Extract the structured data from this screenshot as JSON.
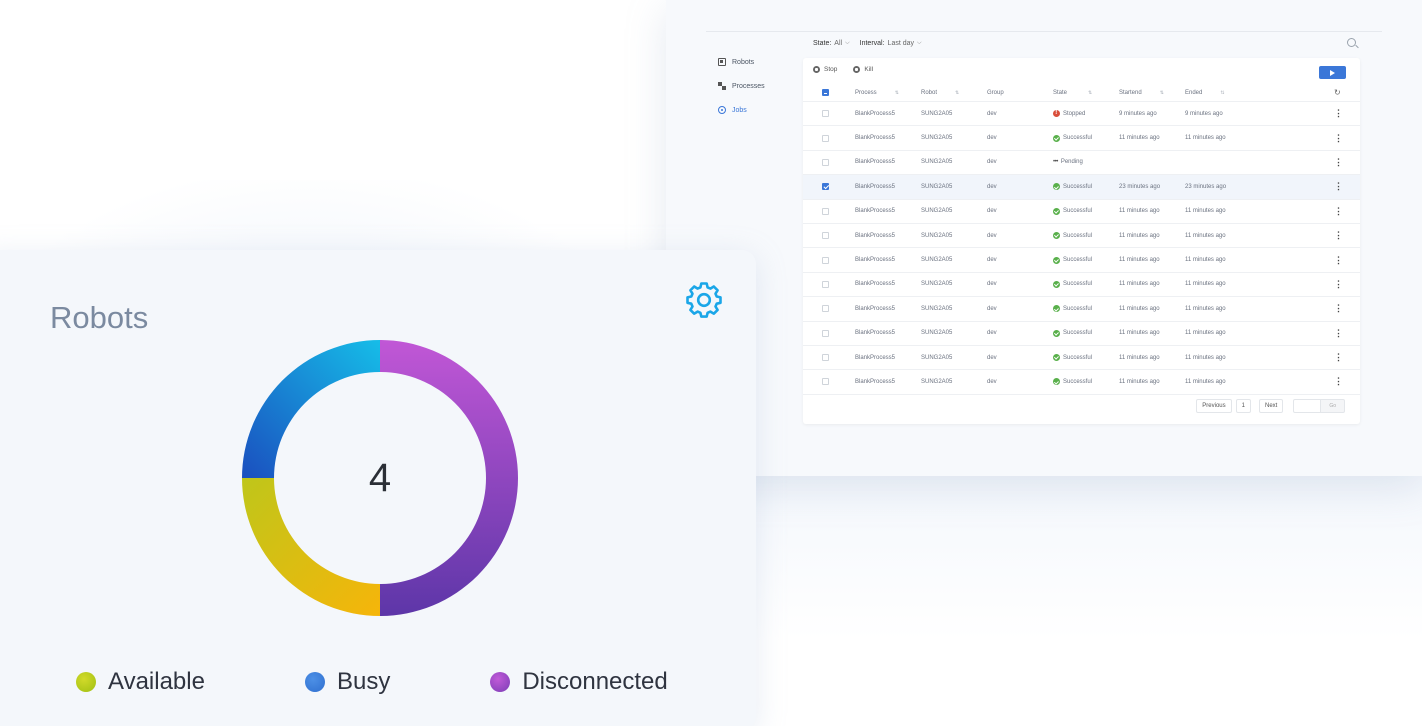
{
  "jobs_window": {
    "filters": [
      {
        "label": "State:",
        "value": "All"
      },
      {
        "label": "Interval:",
        "value": "Last day"
      }
    ],
    "search_icon": "search-icon",
    "sidebar": [
      {
        "label": "Robots",
        "icon": "robot-icon",
        "active": false
      },
      {
        "label": "Processes",
        "icon": "processes-icon",
        "active": false
      },
      {
        "label": "Jobs",
        "icon": "jobs-icon",
        "active": true
      }
    ],
    "actions": {
      "stop": "Stop",
      "kill": "Kill"
    },
    "columns": [
      "Process",
      "Robot",
      "Group",
      "State",
      "Startend",
      "Ended"
    ],
    "rows": [
      {
        "process": "BlankProcess5",
        "robot": "SUNG2A05",
        "group": "dev",
        "state": "Stopped",
        "state_kind": "stopped",
        "started": "9 minutes ago",
        "ended": "9 minutes ago",
        "checked": false
      },
      {
        "process": "BlankProcess5",
        "robot": "SUNG2A05",
        "group": "dev",
        "state": "Successful",
        "state_kind": "success",
        "started": "11 minutes ago",
        "ended": "11 minutes ago",
        "checked": false
      },
      {
        "process": "BlankProcess5",
        "robot": "SUNG2A05",
        "group": "dev",
        "state": "Pending",
        "state_kind": "pending",
        "started": "",
        "ended": "",
        "checked": false
      },
      {
        "process": "BlankProcess5",
        "robot": "SUNG2A05",
        "group": "dev",
        "state": "Successful",
        "state_kind": "success",
        "started": "23 minutes ago",
        "ended": "23 minutes ago",
        "checked": true
      },
      {
        "process": "BlankProcess5",
        "robot": "SUNG2A05",
        "group": "dev",
        "state": "Successful",
        "state_kind": "success",
        "started": "11 minutes ago",
        "ended": "11 minutes ago",
        "checked": false
      },
      {
        "process": "BlankProcess5",
        "robot": "SUNG2A05",
        "group": "dev",
        "state": "Successful",
        "state_kind": "success",
        "started": "11 minutes ago",
        "ended": "11 minutes ago",
        "checked": false
      },
      {
        "process": "BlankProcess5",
        "robot": "SUNG2A05",
        "group": "dev",
        "state": "Successful",
        "state_kind": "success",
        "started": "11 minutes ago",
        "ended": "11 minutes ago",
        "checked": false
      },
      {
        "process": "BlankProcess5",
        "robot": "SUNG2A05",
        "group": "dev",
        "state": "Successful",
        "state_kind": "success",
        "started": "11 minutes ago",
        "ended": "11 minutes ago",
        "checked": false
      },
      {
        "process": "BlankProcess5",
        "robot": "SUNG2A05",
        "group": "dev",
        "state": "Successful",
        "state_kind": "success",
        "started": "11 minutes ago",
        "ended": "11 minutes ago",
        "checked": false
      },
      {
        "process": "BlankProcess5",
        "robot": "SUNG2A05",
        "group": "dev",
        "state": "Successful",
        "state_kind": "success",
        "started": "11 minutes ago",
        "ended": "11 minutes ago",
        "checked": false
      },
      {
        "process": "BlankProcess5",
        "robot": "SUNG2A05",
        "group": "dev",
        "state": "Successful",
        "state_kind": "success",
        "started": "11 minutes ago",
        "ended": "11 minutes ago",
        "checked": false
      },
      {
        "process": "BlankProcess5",
        "robot": "SUNG2A05",
        "group": "dev",
        "state": "Successful",
        "state_kind": "success",
        "started": "11 minutes ago",
        "ended": "11 minutes ago",
        "checked": false
      }
    ],
    "pagination": {
      "previous": "Previous",
      "page": "1",
      "next": "Next",
      "go": "Go"
    }
  },
  "robots_card": {
    "title": "Robots",
    "total": "4",
    "settings_icon": "gear-icon",
    "legend": [
      {
        "label": "Available",
        "color": "#b8c81a"
      },
      {
        "label": "Busy",
        "color": "#3b7fd9"
      },
      {
        "label": "Disconnected",
        "color": "#a84fcf"
      }
    ],
    "donut_segments": [
      {
        "name": "disconnected",
        "share": 0.5,
        "colors": [
          "#c157d6",
          "#5d36a8"
        ]
      },
      {
        "name": "available",
        "share": 0.25,
        "colors": [
          "#f6b50a",
          "#c0c51a"
        ]
      },
      {
        "name": "busy",
        "share": 0.25,
        "colors": [
          "#1a4fbf",
          "#16bde8"
        ]
      }
    ]
  }
}
